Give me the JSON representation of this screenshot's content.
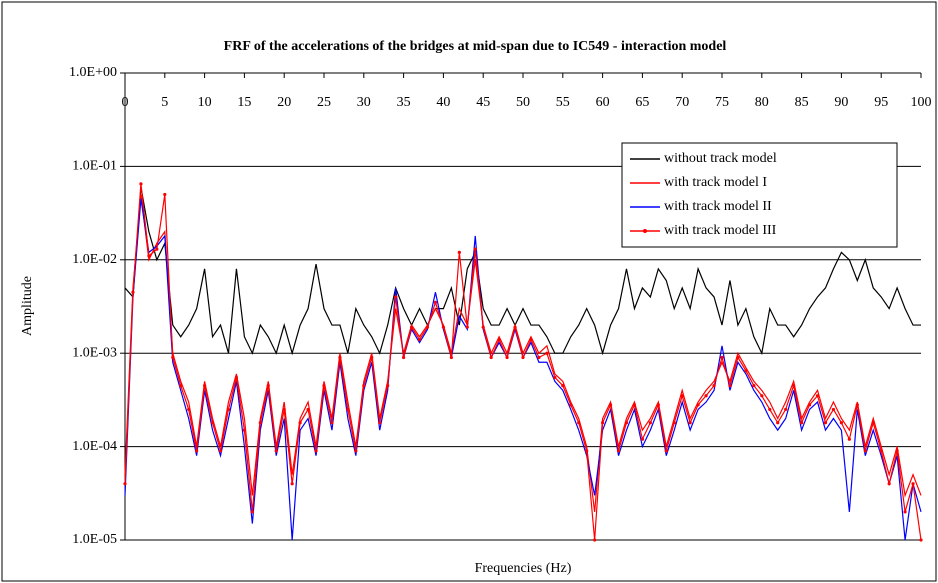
{
  "chart_data": {
    "type": "line",
    "title": "FRF of the accelerations of the bridges at mid-span due to IC549 - interaction model",
    "x_label": "Frequencies (Hz)",
    "y_label": "Amplitude",
    "log_y": true,
    "grid": true,
    "legend": "upper right",
    "xlim": [
      0,
      100
    ],
    "xticks": [
      0,
      5,
      10,
      15,
      20,
      25,
      30,
      35,
      40,
      45,
      50,
      55,
      60,
      65,
      70,
      75,
      80,
      85,
      90,
      95,
      100
    ],
    "ylim": [
      1e-05,
      1
    ],
    "yticks": [
      {
        "value": 1e-05,
        "label": "1.0E-05"
      },
      {
        "value": 0.0001,
        "label": "1.0E-04"
      },
      {
        "value": 0.001,
        "label": "1.0E-03"
      },
      {
        "value": 0.01,
        "label": "1.0E-02"
      },
      {
        "value": 0.1,
        "label": "1.0E-01"
      },
      {
        "value": 1,
        "label": "1.0E+00"
      }
    ],
    "x": [
      0,
      1,
      2,
      3,
      4,
      5,
      6,
      7,
      8,
      9,
      10,
      11,
      12,
      13,
      14,
      15,
      16,
      17,
      18,
      19,
      20,
      21,
      22,
      23,
      24,
      25,
      26,
      27,
      28,
      29,
      30,
      31,
      32,
      33,
      34,
      35,
      36,
      37,
      38,
      39,
      40,
      41,
      42,
      43,
      44,
      45,
      46,
      47,
      48,
      49,
      50,
      51,
      52,
      53,
      54,
      55,
      56,
      57,
      58,
      59,
      60,
      61,
      62,
      63,
      64,
      65,
      66,
      67,
      68,
      69,
      70,
      71,
      72,
      73,
      74,
      75,
      76,
      77,
      78,
      79,
      80,
      81,
      82,
      83,
      84,
      85,
      86,
      87,
      88,
      89,
      90,
      91,
      92,
      93,
      94,
      95,
      96,
      97,
      98,
      99,
      100
    ],
    "series": [
      {
        "name": "without track model",
        "color": "#000000",
        "markers": false,
        "values": [
          0.005,
          0.004,
          0.06,
          0.02,
          0.01,
          0.015,
          0.002,
          0.0015,
          0.002,
          0.003,
          0.008,
          0.0015,
          0.002,
          0.001,
          0.008,
          0.0015,
          0.001,
          0.002,
          0.0015,
          0.001,
          0.002,
          0.001,
          0.002,
          0.003,
          0.009,
          0.003,
          0.002,
          0.002,
          0.001,
          0.003,
          0.002,
          0.0015,
          0.001,
          0.002,
          0.005,
          0.003,
          0.002,
          0.003,
          0.002,
          0.003,
          0.003,
          0.005,
          0.002,
          0.008,
          0.012,
          0.003,
          0.002,
          0.002,
          0.003,
          0.002,
          0.003,
          0.002,
          0.002,
          0.0015,
          0.001,
          0.001,
          0.0015,
          0.002,
          0.003,
          0.002,
          0.001,
          0.002,
          0.003,
          0.008,
          0.003,
          0.005,
          0.004,
          0.008,
          0.006,
          0.003,
          0.005,
          0.003,
          0.008,
          0.005,
          0.004,
          0.002,
          0.006,
          0.002,
          0.003,
          0.0015,
          0.001,
          0.003,
          0.002,
          0.002,
          0.0015,
          0.002,
          0.003,
          0.004,
          0.005,
          0.008,
          0.012,
          0.01,
          0.006,
          0.01,
          0.005,
          0.004,
          0.003,
          0.005,
          0.003,
          0.002,
          0.002
        ]
      },
      {
        "name": "with track model I",
        "color": "#ff0000",
        "markers": false,
        "values": [
          5e-05,
          0.005,
          0.05,
          0.01,
          0.015,
          0.02,
          0.001,
          0.0005,
          0.0003,
          0.0001,
          0.0005,
          0.0002,
          0.0001,
          0.0003,
          0.0006,
          0.0002,
          3e-05,
          0.0002,
          0.0005,
          0.0001,
          0.0003,
          5e-05,
          0.0002,
          0.0003,
          0.0001,
          0.0005,
          0.0002,
          0.001,
          0.0003,
          0.0001,
          0.0005,
          0.001,
          0.0002,
          0.0005,
          0.003,
          0.001,
          0.002,
          0.0015,
          0.002,
          0.003,
          0.002,
          0.001,
          0.003,
          0.002,
          0.01,
          0.002,
          0.001,
          0.0015,
          0.001,
          0.002,
          0.001,
          0.0015,
          0.001,
          0.0012,
          0.0006,
          0.0005,
          0.0003,
          0.0002,
          0.0001,
          2e-05,
          0.0002,
          0.0003,
          0.0001,
          0.0002,
          0.0003,
          0.00015,
          0.0002,
          0.0003,
          0.0001,
          0.0002,
          0.0004,
          0.0002,
          0.0003,
          0.0004,
          0.0005,
          0.0008,
          0.0005,
          0.001,
          0.0007,
          0.0005,
          0.0004,
          0.0003,
          0.0002,
          0.0003,
          0.0005,
          0.0002,
          0.0003,
          0.0004,
          0.0002,
          0.0003,
          0.0002,
          0.00015,
          0.0003,
          0.0001,
          0.0002,
          0.0001,
          5e-05,
          0.0001,
          3e-05,
          5e-05,
          3e-05
        ]
      },
      {
        "name": "with track model II",
        "color": "#0000ff",
        "markers": false,
        "values": [
          3e-05,
          0.004,
          0.045,
          0.012,
          0.014,
          0.018,
          0.0008,
          0.0004,
          0.0002,
          8e-05,
          0.0004,
          0.00015,
          8e-05,
          0.0002,
          0.0005,
          0.0001,
          1.5e-05,
          0.00015,
          0.0004,
          8e-05,
          0.0002,
          1e-05,
          0.00015,
          0.0002,
          8e-05,
          0.0004,
          0.00015,
          0.0008,
          0.0002,
          8e-05,
          0.0004,
          0.0008,
          0.00015,
          0.0004,
          0.005,
          0.0009,
          0.0018,
          0.0013,
          0.0018,
          0.0045,
          0.0018,
          0.0009,
          0.0025,
          0.0018,
          0.018,
          0.0018,
          0.0009,
          0.0013,
          0.0009,
          0.0018,
          0.0009,
          0.0013,
          0.0008,
          0.0008,
          0.0005,
          0.0004,
          0.00025,
          0.00015,
          8e-05,
          3e-05,
          0.00015,
          0.00025,
          8e-05,
          0.00015,
          0.00025,
          0.0001,
          0.00015,
          0.00025,
          8e-05,
          0.00015,
          0.0003,
          0.00015,
          0.00025,
          0.0003,
          0.0004,
          0.0012,
          0.0004,
          0.0008,
          0.0006,
          0.0004,
          0.0003,
          0.0002,
          0.00015,
          0.0002,
          0.0004,
          0.00015,
          0.00025,
          0.0003,
          0.00015,
          0.0002,
          0.00015,
          2e-05,
          0.00025,
          8e-05,
          0.00015,
          8e-05,
          4e-05,
          8e-05,
          1e-05,
          4e-05,
          2e-05
        ]
      },
      {
        "name": "with track model III",
        "color": "#ff0000",
        "markers": true,
        "values": [
          4e-05,
          0.0045,
          0.065,
          0.011,
          0.013,
          0.05,
          0.0009,
          0.00045,
          0.00025,
          9e-05,
          0.00045,
          0.00018,
          9e-05,
          0.00025,
          0.00055,
          0.00015,
          2e-05,
          0.00018,
          0.00045,
          9e-05,
          0.00025,
          4e-05,
          0.00018,
          0.00025,
          9e-05,
          0.00045,
          0.00018,
          0.0009,
          0.00025,
          9e-05,
          0.00045,
          0.0009,
          0.00018,
          0.00045,
          0.004,
          0.0009,
          0.0019,
          0.0014,
          0.0019,
          0.0035,
          0.0019,
          0.0009,
          0.012,
          0.0019,
          0.013,
          0.0019,
          0.0009,
          0.0014,
          0.0009,
          0.0019,
          0.0009,
          0.0014,
          0.0009,
          0.001,
          0.00055,
          0.00045,
          0.00028,
          0.00018,
          9e-05,
          1e-05,
          0.00018,
          0.00028,
          9e-05,
          0.00018,
          0.00028,
          0.00012,
          0.00018,
          0.00028,
          9e-05,
          0.00018,
          0.00035,
          0.00018,
          0.00028,
          0.00035,
          0.00045,
          0.0009,
          0.00045,
          0.0009,
          0.00065,
          0.00045,
          0.00035,
          0.00025,
          0.00018,
          0.00025,
          0.00045,
          0.00018,
          0.00028,
          0.00035,
          0.00018,
          0.00025,
          0.00018,
          0.00012,
          0.00028,
          9e-05,
          0.00018,
          9e-05,
          4e-05,
          9e-05,
          2e-05,
          4e-05,
          1e-05
        ]
      }
    ]
  }
}
